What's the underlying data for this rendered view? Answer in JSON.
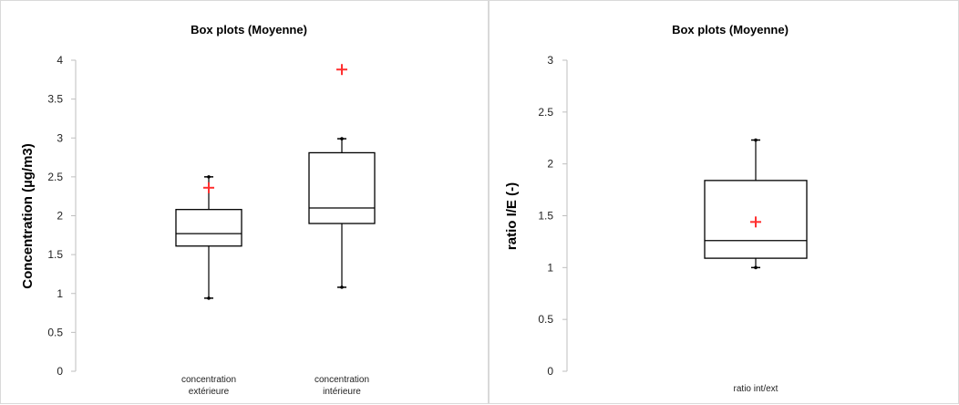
{
  "chart_data": [
    {
      "type": "box",
      "title": "Box plots (Moyenne)",
      "ylabel": "Concentration (µg/m3)",
      "xlabel": "",
      "ylim": [
        0,
        4
      ],
      "yticks": [
        "0",
        "0.5",
        "1",
        "1.5",
        "2",
        "2.5",
        "3",
        "3.5",
        "4"
      ],
      "grid": false,
      "categories": [
        [
          "concentration",
          "extérieure"
        ],
        [
          "concentration",
          "intérieure"
        ]
      ],
      "boxes": [
        {
          "min": 0.94,
          "q1": 1.61,
          "median": 1.77,
          "q3": 2.08,
          "max": 2.5,
          "mean": 2.36
        },
        {
          "min": 1.08,
          "q1": 1.9,
          "median": 2.1,
          "q3": 2.81,
          "max": 2.99,
          "mean": 3.88
        }
      ],
      "mean_marker_color": "#ff3030"
    },
    {
      "type": "box",
      "title": "Box plots (Moyenne)",
      "ylabel": "ratio I/E (-)",
      "xlabel": "",
      "ylim": [
        0,
        3
      ],
      "yticks": [
        "0",
        "0.5",
        "1",
        "1.5",
        "2",
        "2.5",
        "3"
      ],
      "grid": false,
      "categories": [
        [
          "ratio int/ext"
        ]
      ],
      "boxes": [
        {
          "min": 1.0,
          "q1": 1.09,
          "median": 1.26,
          "q3": 1.84,
          "max": 2.23,
          "mean": 1.44
        }
      ],
      "mean_marker_color": "#ff3030"
    }
  ]
}
